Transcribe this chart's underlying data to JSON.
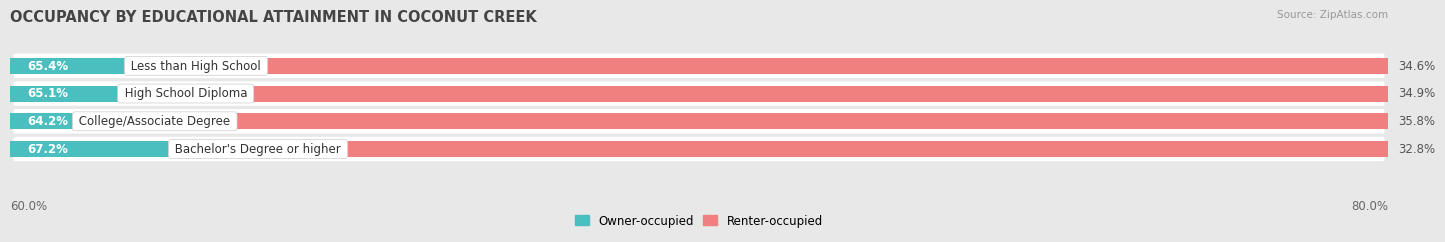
{
  "title": "OCCUPANCY BY EDUCATIONAL ATTAINMENT IN COCONUT CREEK",
  "source": "Source: ZipAtlas.com",
  "categories": [
    "Less than High School",
    "High School Diploma",
    "College/Associate Degree",
    "Bachelor's Degree or higher"
  ],
  "owner_values": [
    65.4,
    65.1,
    64.2,
    67.2
  ],
  "renter_values": [
    34.6,
    34.9,
    35.8,
    32.8
  ],
  "owner_color": "#4BBFBF",
  "renter_color": "#F08080",
  "owner_label": "Owner-occupied",
  "renter_label": "Renter-occupied",
  "xlim_left": 60.0,
  "xlim_right": 100.0,
  "x_left_label": "60.0%",
  "x_right_label": "80.0%",
  "bar_height": 0.58,
  "background_color": "#e8e8e8",
  "row_bg_color": "#ffffff",
  "title_fontsize": 10.5,
  "label_fontsize": 8.5,
  "value_fontsize": 8.5
}
